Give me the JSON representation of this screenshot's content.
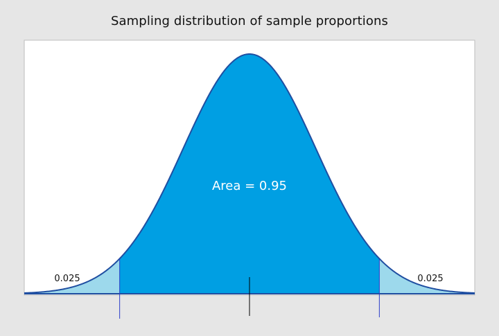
{
  "chart_data": {
    "type": "area",
    "title": "Sampling distribution of sample proportions",
    "distribution": "normal",
    "mean": 0,
    "sd": 1,
    "z_critical": 1.96,
    "xlim": [
      -3.4,
      3.4
    ],
    "center_area": {
      "value": 0.95,
      "label": "Area = 0.95",
      "color": "#009fe3"
    },
    "tail_areas": [
      {
        "side": "left",
        "value": 0.025,
        "label": "0.025",
        "color": "#9dd9ec"
      },
      {
        "side": "right",
        "value": 0.025,
        "label": "0.025",
        "color": "#9dd9ec"
      }
    ],
    "curve_color": "#1f4ea1",
    "plot_background": "#ffffff",
    "frame_background": "#e6e6e6",
    "grid": false,
    "legend": false
  }
}
